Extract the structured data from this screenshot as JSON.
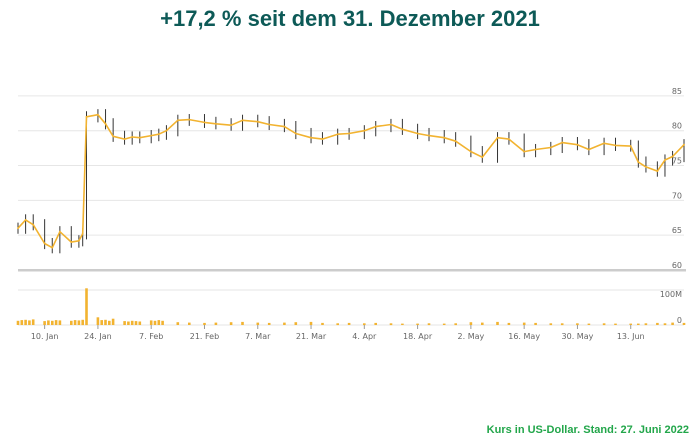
{
  "headline": "+17,2 % seit dem 31. Dezember 2021",
  "footnote": "Kurs in US-Dollar. Stand: 27. Juni 2022",
  "colors": {
    "headline": "#0d5a57",
    "footnote": "#22a64a",
    "line": "#f2b330",
    "volume": "#f2b330",
    "grid": "#e6e6e6",
    "candle": "#333333",
    "separator": "#cccccc"
  },
  "chart_data": {
    "type": "line",
    "title": "",
    "xlabel": "",
    "ylabel": "",
    "ylim": [
      60,
      87
    ],
    "xlim": [
      "2022-01-03",
      "2022-06-27"
    ],
    "y_ticks": [
      60,
      65,
      70,
      75,
      80,
      85
    ],
    "x_ticks": [
      {
        "date": "2022-01-10",
        "label": "10. Jan"
      },
      {
        "date": "2022-01-24",
        "label": "24. Jan"
      },
      {
        "date": "2022-02-07",
        "label": "7. Feb"
      },
      {
        "date": "2022-02-21",
        "label": "21. Feb"
      },
      {
        "date": "2022-03-07",
        "label": "7. Mar"
      },
      {
        "date": "2022-03-21",
        "label": "21. Mar"
      },
      {
        "date": "2022-04-04",
        "label": "4. Apr"
      },
      {
        "date": "2022-04-18",
        "label": "18. Apr"
      },
      {
        "date": "2022-05-02",
        "label": "2. May"
      },
      {
        "date": "2022-05-16",
        "label": "16. May"
      },
      {
        "date": "2022-05-30",
        "label": "30. May"
      },
      {
        "date": "2022-06-13",
        "label": "13. Jun"
      }
    ],
    "grid": true,
    "legend": "none",
    "price": {
      "x": [
        "2022-01-03",
        "2022-01-05",
        "2022-01-07",
        "2022-01-10",
        "2022-01-12",
        "2022-01-14",
        "2022-01-17",
        "2022-01-19",
        "2022-01-20",
        "2022-01-21",
        "2022-01-24",
        "2022-01-26",
        "2022-01-28",
        "2022-01-31",
        "2022-02-02",
        "2022-02-04",
        "2022-02-07",
        "2022-02-09",
        "2022-02-11",
        "2022-02-14",
        "2022-02-17",
        "2022-02-21",
        "2022-02-24",
        "2022-02-28",
        "2022-03-03",
        "2022-03-07",
        "2022-03-10",
        "2022-03-14",
        "2022-03-17",
        "2022-03-21",
        "2022-03-24",
        "2022-03-28",
        "2022-03-31",
        "2022-04-04",
        "2022-04-07",
        "2022-04-11",
        "2022-04-14",
        "2022-04-18",
        "2022-04-21",
        "2022-04-25",
        "2022-04-28",
        "2022-05-02",
        "2022-05-05",
        "2022-05-09",
        "2022-05-12",
        "2022-05-16",
        "2022-05-19",
        "2022-05-23",
        "2022-05-26",
        "2022-05-30",
        "2022-06-02",
        "2022-06-06",
        "2022-06-09",
        "2022-06-13",
        "2022-06-15",
        "2022-06-17",
        "2022-06-20",
        "2022-06-22",
        "2022-06-24",
        "2022-06-27"
      ],
      "y": [
        66.0,
        67.2,
        66.5,
        63.8,
        63.2,
        65.5,
        64.0,
        64.2,
        65.2,
        82.0,
        82.3,
        81.0,
        79.2,
        78.8,
        79.1,
        79.0,
        79.3,
        79.5,
        80.0,
        81.5,
        81.6,
        81.2,
        81.0,
        80.8,
        81.5,
        81.3,
        80.9,
        80.6,
        79.6,
        79.0,
        78.8,
        79.5,
        79.6,
        80.0,
        80.6,
        80.9,
        80.2,
        79.6,
        79.3,
        79.0,
        78.5,
        77.0,
        76.2,
        79.0,
        78.8,
        77.0,
        77.3,
        77.6,
        78.3,
        78.0,
        77.3,
        78.2,
        77.9,
        77.8,
        75.5,
        74.8,
        74.2,
        75.8,
        76.3,
        78.0
      ]
    },
    "volume": {
      "ylabel_ticks": [
        "0",
        "100M"
      ],
      "ylim": [
        0,
        100
      ],
      "unit": "M",
      "x": [
        "2022-01-03",
        "2022-01-04",
        "2022-01-05",
        "2022-01-06",
        "2022-01-07",
        "2022-01-10",
        "2022-01-11",
        "2022-01-12",
        "2022-01-13",
        "2022-01-14",
        "2022-01-17",
        "2022-01-18",
        "2022-01-19",
        "2022-01-20",
        "2022-01-21",
        "2022-01-24",
        "2022-01-25",
        "2022-01-26",
        "2022-01-27",
        "2022-01-28",
        "2022-01-31",
        "2022-02-01",
        "2022-02-02",
        "2022-02-03",
        "2022-02-04",
        "2022-02-07",
        "2022-02-08",
        "2022-02-09",
        "2022-02-10",
        "2022-02-14",
        "2022-02-17",
        "2022-02-21",
        "2022-02-24",
        "2022-02-28",
        "2022-03-03",
        "2022-03-07",
        "2022-03-10",
        "2022-03-14",
        "2022-03-17",
        "2022-03-21",
        "2022-03-24",
        "2022-03-28",
        "2022-03-31",
        "2022-04-04",
        "2022-04-07",
        "2022-04-11",
        "2022-04-14",
        "2022-04-18",
        "2022-04-21",
        "2022-04-25",
        "2022-04-28",
        "2022-05-02",
        "2022-05-05",
        "2022-05-09",
        "2022-05-12",
        "2022-05-16",
        "2022-05-19",
        "2022-05-23",
        "2022-05-26",
        "2022-05-30",
        "2022-06-02",
        "2022-06-06",
        "2022-06-09",
        "2022-06-13",
        "2022-06-15",
        "2022-06-17",
        "2022-06-20",
        "2022-06-22",
        "2022-06-24",
        "2022-06-27"
      ],
      "values": [
        12,
        14,
        15,
        13,
        16,
        11,
        13,
        12,
        14,
        13,
        12,
        14,
        13,
        15,
        105,
        22,
        14,
        15,
        12,
        18,
        11,
        10,
        12,
        11,
        10,
        13,
        12,
        14,
        12,
        8,
        7,
        6,
        7,
        8,
        9,
        7,
        6,
        7,
        8,
        9,
        6,
        5,
        6,
        5,
        6,
        5,
        4,
        4,
        5,
        4,
        5,
        8,
        7,
        9,
        6,
        7,
        6,
        5,
        5,
        5,
        4,
        5,
        4,
        4,
        4,
        5,
        6,
        5,
        7,
        6
      ]
    }
  }
}
